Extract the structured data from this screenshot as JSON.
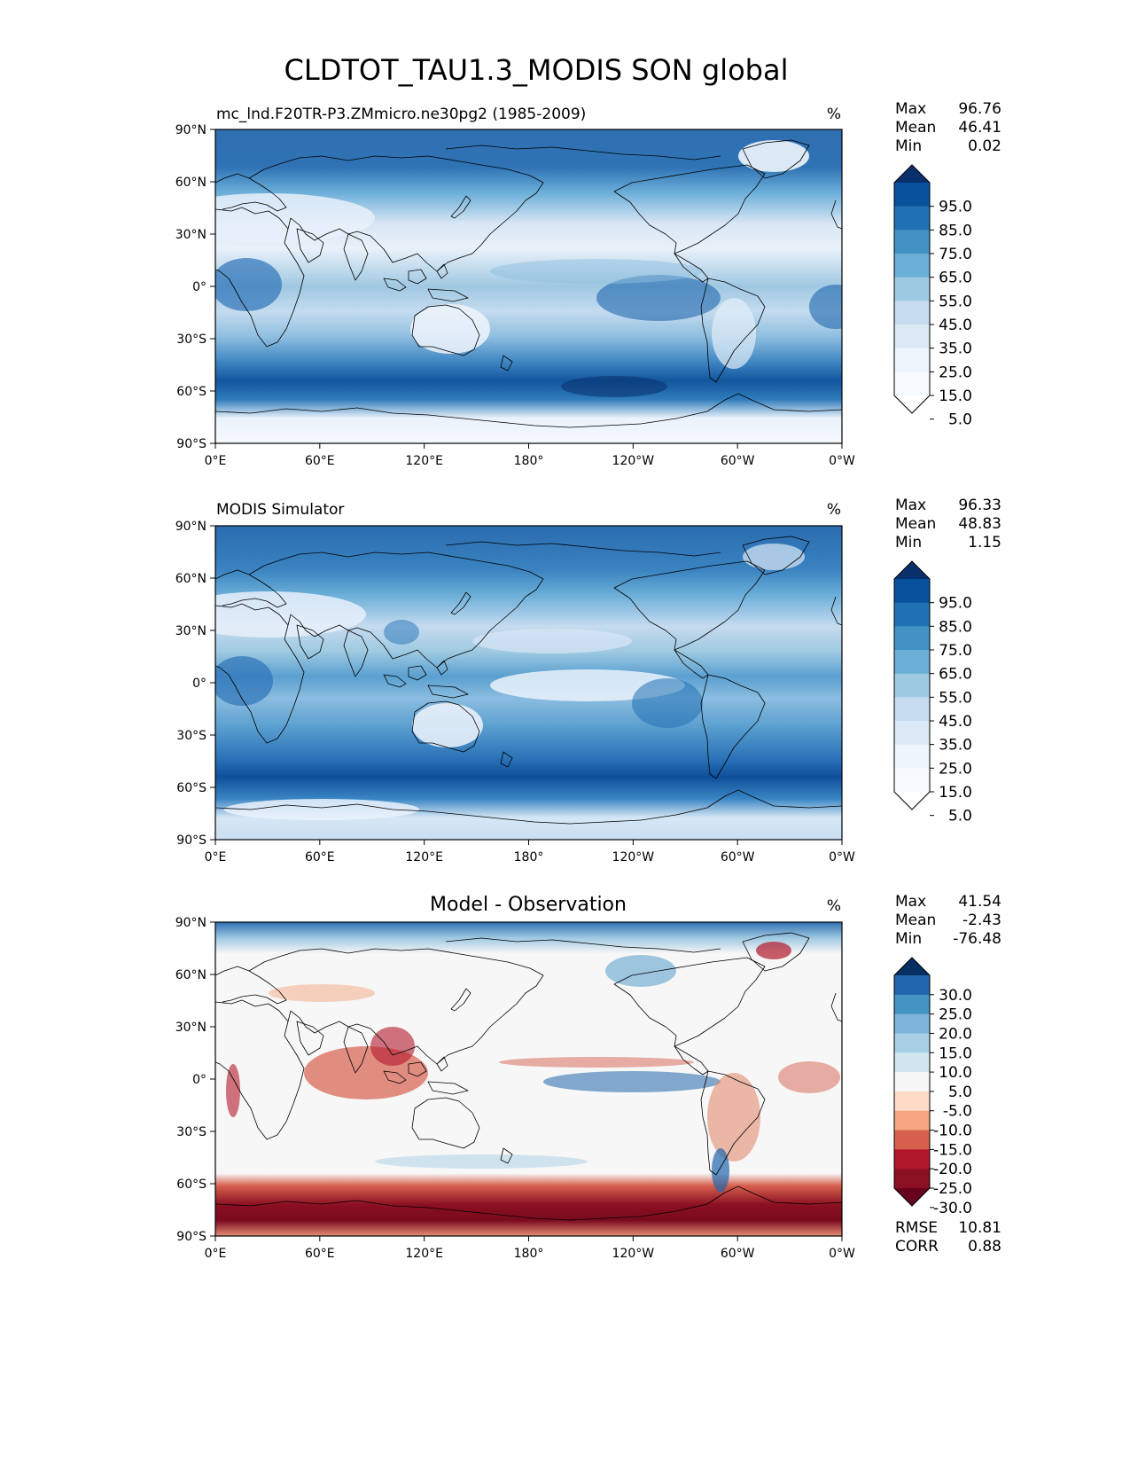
{
  "figure": {
    "title": "CLDTOT_TAU1.3_MODIS SON global"
  },
  "axes": {
    "lat_ticks": [
      "90°N",
      "60°N",
      "30°N",
      "0°",
      "30°S",
      "60°S",
      "90°S"
    ],
    "lon_ticks": [
      "0°E",
      "60°E",
      "120°E",
      "180°",
      "120°W",
      "60°W",
      "0°W"
    ]
  },
  "panels": [
    {
      "id": "model",
      "left_title": "mc_lnd.F20TR-P3.ZMmicro.ne30pg2 (1985-2009)",
      "center_title": "",
      "units": "%",
      "stats": [
        {
          "label": "Max",
          "value": "96.76"
        },
        {
          "label": "Mean",
          "value": "46.41"
        },
        {
          "label": "Min",
          "value": "0.02"
        }
      ],
      "colorbar": {
        "ticks": [
          "95.0",
          "85.0",
          "75.0",
          "65.0",
          "55.0",
          "45.0",
          "35.0",
          "25.0",
          "15.0",
          "5.0"
        ],
        "colors": [
          "#08306b",
          "#08519c",
          "#2171b5",
          "#4292c6",
          "#6baed6",
          "#9ecae1",
          "#c6dbef",
          "#dbe9f6",
          "#eef5fc",
          "#f7fbff",
          "#ffffff"
        ]
      }
    },
    {
      "id": "obs",
      "left_title": "MODIS Simulator",
      "center_title": "",
      "units": "%",
      "stats": [
        {
          "label": "Max",
          "value": "96.33"
        },
        {
          "label": "Mean",
          "value": "48.83"
        },
        {
          "label": "Min",
          "value": "1.15"
        }
      ],
      "colorbar": {
        "ticks": [
          "95.0",
          "85.0",
          "75.0",
          "65.0",
          "55.0",
          "45.0",
          "35.0",
          "25.0",
          "15.0",
          "5.0"
        ],
        "colors": [
          "#08306b",
          "#08519c",
          "#2171b5",
          "#4292c6",
          "#6baed6",
          "#9ecae1",
          "#c6dbef",
          "#dbe9f6",
          "#eef5fc",
          "#f7fbff",
          "#ffffff"
        ]
      }
    },
    {
      "id": "diff",
      "left_title": "",
      "center_title": "Model - Observation",
      "units": "%",
      "stats": [
        {
          "label": "Max",
          "value": "41.54"
        },
        {
          "label": "Mean",
          "value": "-2.43"
        },
        {
          "label": "Min",
          "value": "-76.48"
        }
      ],
      "extra_stats": [
        {
          "label": "RMSE",
          "value": "10.81"
        },
        {
          "label": "CORR",
          "value": "0.88"
        }
      ],
      "colorbar": {
        "ticks": [
          "30.0",
          "25.0",
          "20.0",
          "15.0",
          "10.0",
          "5.0",
          "-5.0",
          "-10.0",
          "-15.0",
          "-20.0",
          "-25.0",
          "-30.0"
        ],
        "colors": [
          "#053061",
          "#2166ac",
          "#4393c3",
          "#7fb5d9",
          "#a8cfe5",
          "#d1e5f0",
          "#f7f7f7",
          "#fddbc7",
          "#f4a582",
          "#d6604d",
          "#b2182b",
          "#8b1022",
          "#67001f"
        ]
      }
    }
  ]
}
